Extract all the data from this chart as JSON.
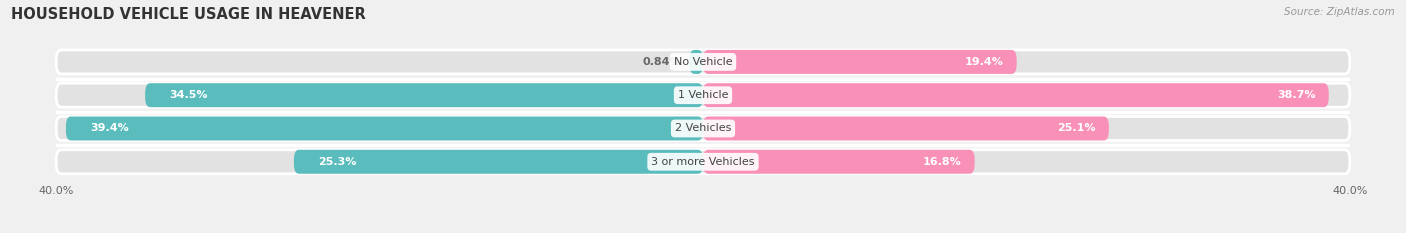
{
  "title": "HOUSEHOLD VEHICLE USAGE IN HEAVENER",
  "source": "Source: ZipAtlas.com",
  "categories": [
    "No Vehicle",
    "1 Vehicle",
    "2 Vehicles",
    "3 or more Vehicles"
  ],
  "owner_values": [
    0.84,
    34.5,
    39.4,
    25.3
  ],
  "renter_values": [
    19.4,
    38.7,
    25.1,
    16.8
  ],
  "owner_color": "#5bbcbd",
  "renter_color": "#f990b8",
  "axis_max": 40.0,
  "bg_color": "#f0f0f0",
  "bar_bg_color": "#e2e2e2",
  "title_fontsize": 10.5,
  "source_fontsize": 7.5,
  "label_fontsize": 8,
  "axis_label_fontsize": 8,
  "legend_fontsize": 8,
  "category_fontsize": 8,
  "bar_height": 0.72,
  "row_gap_color": "#f0f0f0"
}
